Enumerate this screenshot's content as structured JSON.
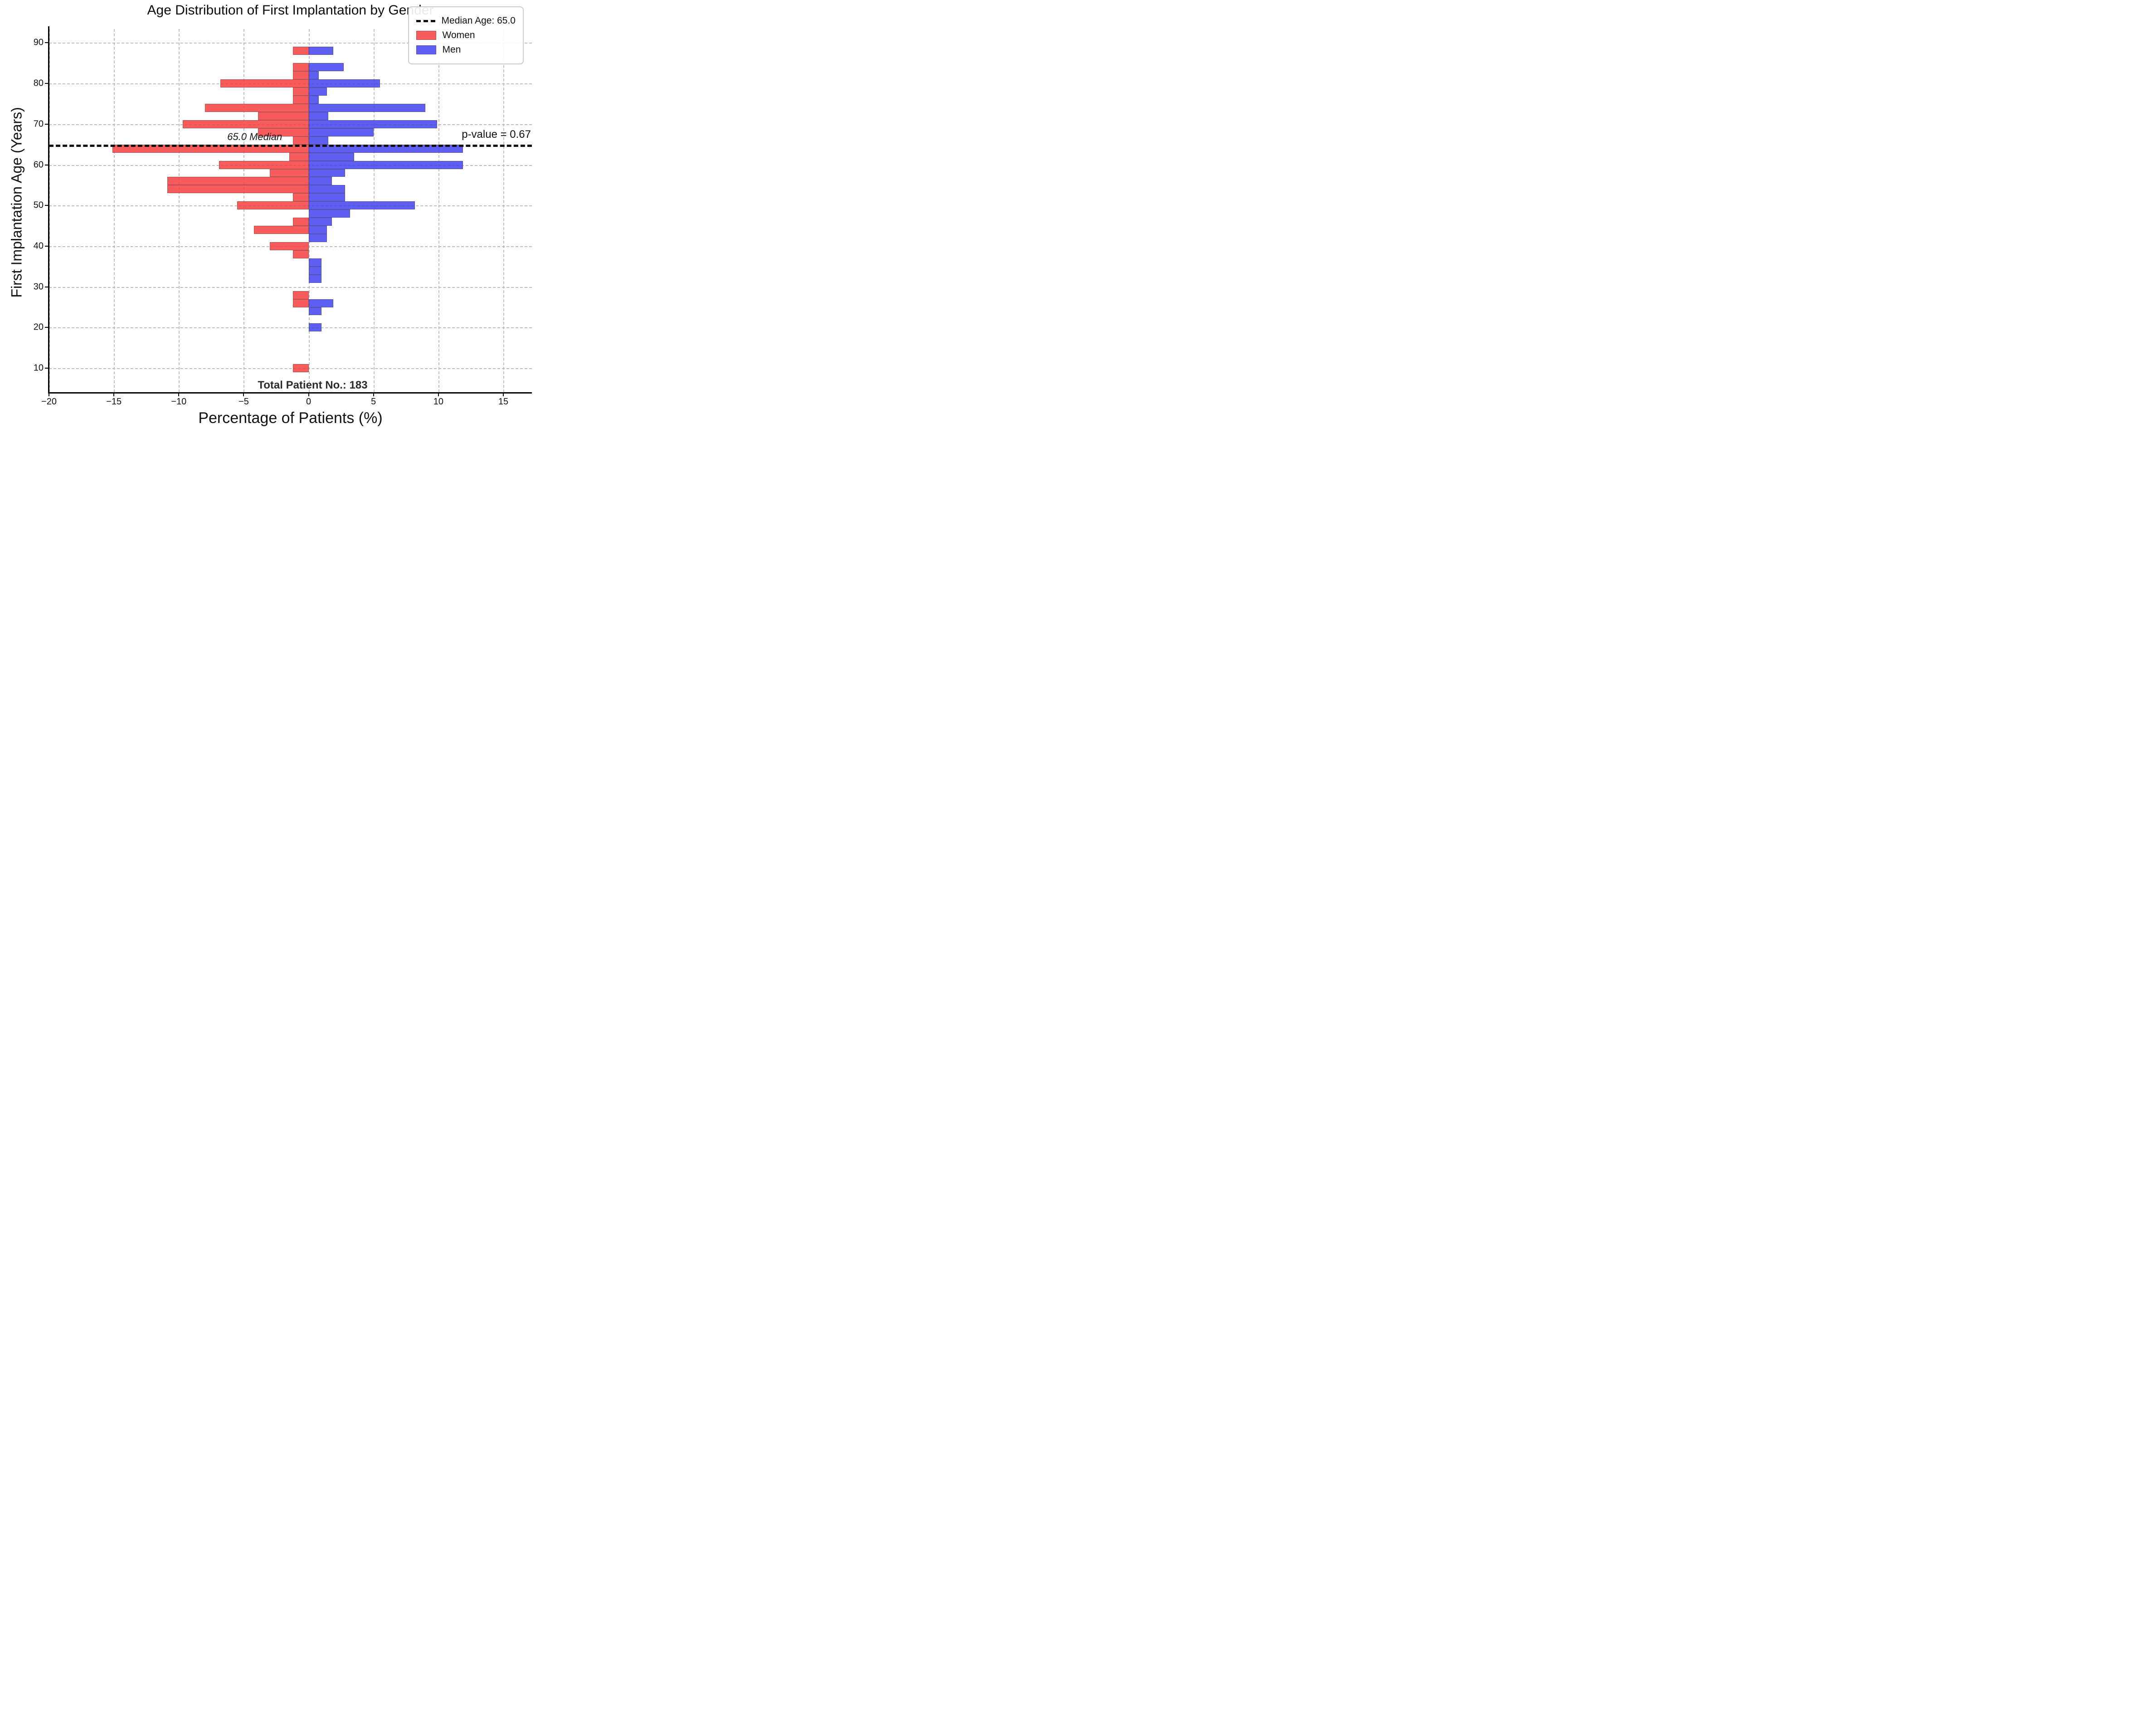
{
  "title": "Age Distribution of First Implantation by Gender",
  "x_axis": {
    "label": "Percentage of Patients (%)",
    "range": [
      -20,
      17.2
    ],
    "ticks": [
      {
        "v": -20,
        "label": "−20"
      },
      {
        "v": -15,
        "label": "−15"
      },
      {
        "v": -10,
        "label": "−10"
      },
      {
        "v": -5,
        "label": "−5"
      },
      {
        "v": 0,
        "label": "0"
      },
      {
        "v": 5,
        "label": "5"
      },
      {
        "v": 10,
        "label": "10"
      },
      {
        "v": 15,
        "label": "15"
      }
    ]
  },
  "y_axis": {
    "label": "First Implantation Age (Years)",
    "range": [
      4.1,
      93.4
    ],
    "ticks": [
      {
        "v": 90,
        "label": "90"
      },
      {
        "v": 80,
        "label": "80"
      },
      {
        "v": 70,
        "label": "70"
      },
      {
        "v": 60,
        "label": "60"
      },
      {
        "v": 50,
        "label": "50"
      },
      {
        "v": 40,
        "label": "40"
      },
      {
        "v": 30,
        "label": "30"
      },
      {
        "v": 20,
        "label": "20"
      },
      {
        "v": 10,
        "label": "10"
      }
    ]
  },
  "median_age": 65.0,
  "legend": {
    "median_label": "Median Age: 65.0",
    "women_label": "Women",
    "men_label": "Men"
  },
  "annotations": {
    "median_line_label": "65.0 Median",
    "p_value": "p-value = 0.67",
    "total_patients": "Total Patient No.: 183"
  },
  "colors": {
    "women": "#f64040",
    "men": "#4244ee",
    "grid": "#b3b3b3",
    "median_line": "#111111"
  },
  "chart_data": {
    "type": "bar",
    "orientation": "horizontal",
    "layout": "diverging population pyramid",
    "bin_width_years": 2,
    "units": "percent of patients",
    "series": [
      {
        "name": "Women",
        "side": "negative",
        "color": "#f64040"
      },
      {
        "name": "Men",
        "side": "positive",
        "color": "#4244ee"
      }
    ],
    "bins": [
      {
        "age_start": 9,
        "age_end": 11,
        "women": 1.2,
        "men": 0
      },
      {
        "age_start": 11,
        "age_end": 13,
        "women": 0,
        "men": 0
      },
      {
        "age_start": 13,
        "age_end": 15,
        "women": 0,
        "men": 0
      },
      {
        "age_start": 15,
        "age_end": 17,
        "women": 0,
        "men": 0
      },
      {
        "age_start": 17,
        "age_end": 19,
        "women": 0,
        "men": 0
      },
      {
        "age_start": 19,
        "age_end": 21,
        "women": 0,
        "men": 1.0
      },
      {
        "age_start": 21,
        "age_end": 23,
        "women": 0,
        "men": 0
      },
      {
        "age_start": 23,
        "age_end": 25,
        "women": 0,
        "men": 1.0
      },
      {
        "age_start": 25,
        "age_end": 27,
        "women": 1.2,
        "men": 1.9
      },
      {
        "age_start": 27,
        "age_end": 29,
        "women": 1.2,
        "men": 0
      },
      {
        "age_start": 29,
        "age_end": 31,
        "women": 0,
        "men": 0
      },
      {
        "age_start": 31,
        "age_end": 33,
        "women": 0,
        "men": 1.0
      },
      {
        "age_start": 33,
        "age_end": 35,
        "women": 0,
        "men": 1.0
      },
      {
        "age_start": 35,
        "age_end": 37,
        "women": 0,
        "men": 1.0
      },
      {
        "age_start": 37,
        "age_end": 39,
        "women": 1.2,
        "men": 0
      },
      {
        "age_start": 39,
        "age_end": 41,
        "women": 3.0,
        "men": 0
      },
      {
        "age_start": 41,
        "age_end": 43,
        "women": 0,
        "men": 1.4
      },
      {
        "age_start": 43,
        "age_end": 45,
        "women": 4.2,
        "men": 1.4
      },
      {
        "age_start": 45,
        "age_end": 47,
        "women": 1.2,
        "men": 1.8
      },
      {
        "age_start": 47,
        "age_end": 49,
        "women": 0,
        "men": 3.2
      },
      {
        "age_start": 49,
        "age_end": 51,
        "women": 5.5,
        "men": 8.2
      },
      {
        "age_start": 51,
        "age_end": 53,
        "women": 1.2,
        "men": 2.8
      },
      {
        "age_start": 53,
        "age_end": 55,
        "women": 10.9,
        "men": 2.8
      },
      {
        "age_start": 55,
        "age_end": 57,
        "women": 10.9,
        "men": 1.8
      },
      {
        "age_start": 57,
        "age_end": 59,
        "women": 3.0,
        "men": 2.8
      },
      {
        "age_start": 59,
        "age_end": 61,
        "women": 6.9,
        "men": 11.9
      },
      {
        "age_start": 61,
        "age_end": 63,
        "women": 1.5,
        "men": 3.5
      },
      {
        "age_start": 63,
        "age_end": 65,
        "women": 15.1,
        "men": 11.9
      },
      {
        "age_start": 65,
        "age_end": 67,
        "women": 1.2,
        "men": 1.5
      },
      {
        "age_start": 67,
        "age_end": 69,
        "women": 3.9,
        "men": 5.0
      },
      {
        "age_start": 69,
        "age_end": 71,
        "women": 9.7,
        "men": 9.9
      },
      {
        "age_start": 71,
        "age_end": 73,
        "women": 3.9,
        "men": 1.5
      },
      {
        "age_start": 73,
        "age_end": 75,
        "women": 8.0,
        "men": 9.0
      },
      {
        "age_start": 75,
        "age_end": 77,
        "women": 1.2,
        "men": 0.8
      },
      {
        "age_start": 77,
        "age_end": 79,
        "women": 1.2,
        "men": 1.4
      },
      {
        "age_start": 79,
        "age_end": 81,
        "women": 6.8,
        "men": 5.5
      },
      {
        "age_start": 81,
        "age_end": 83,
        "women": 1.2,
        "men": 0.8
      },
      {
        "age_start": 83,
        "age_end": 85,
        "women": 1.2,
        "men": 2.7
      },
      {
        "age_start": 85,
        "age_end": 87,
        "women": 0,
        "men": 0
      },
      {
        "age_start": 87,
        "age_end": 89,
        "women": 1.2,
        "men": 1.9
      }
    ]
  }
}
